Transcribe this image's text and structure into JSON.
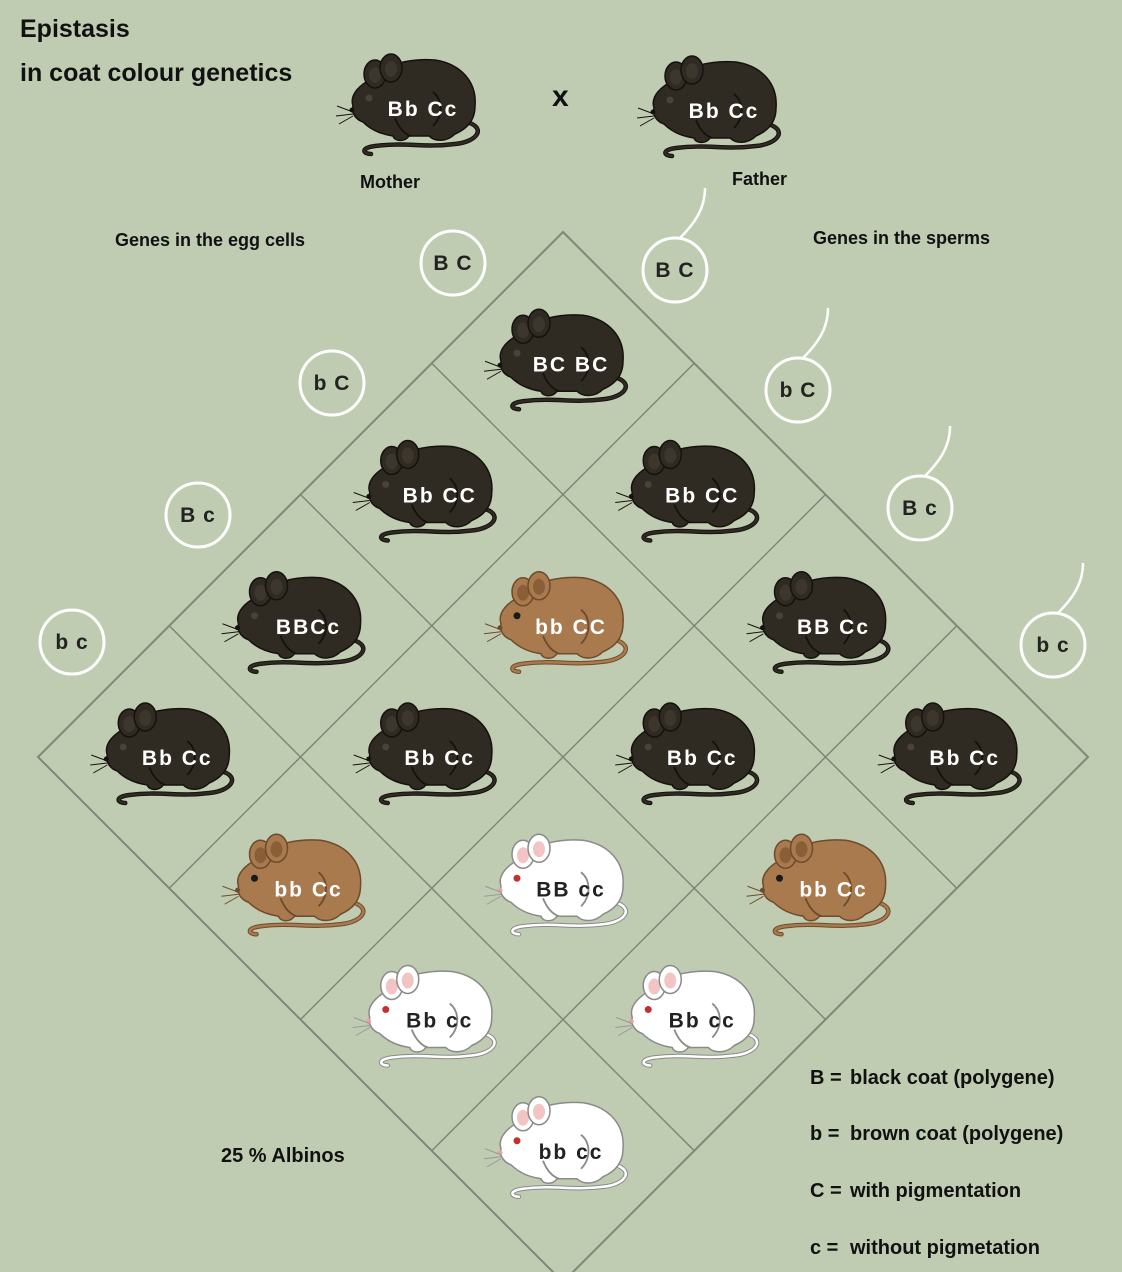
{
  "title": {
    "line1": "Epistasis",
    "line2": "in coat colour genetics"
  },
  "cross": {
    "symbol": "x",
    "mother": {
      "label": "Mother",
      "genotype": "Bb Cc",
      "coat": "black"
    },
    "father": {
      "label": "Father",
      "genotype": "Bb Cc",
      "coat": "black"
    }
  },
  "egg_label": "Genes in the egg cells",
  "sperm_label": "Genes in the sperms",
  "egg_gametes": [
    "B C",
    "b C",
    "B c",
    "b c"
  ],
  "sperm_gametes": [
    "B C",
    "b C",
    "B c",
    "b c"
  ],
  "grid": [
    {
      "row": 0,
      "col": 0,
      "genotype": "BC BC",
      "coat": "black"
    },
    {
      "row": 0,
      "col": 1,
      "genotype": "Bb CC",
      "coat": "black"
    },
    {
      "row": 0,
      "col": 2,
      "genotype": "BB Cc",
      "coat": "black"
    },
    {
      "row": 0,
      "col": 3,
      "genotype": "Bb Cc",
      "coat": "black"
    },
    {
      "row": 1,
      "col": 0,
      "genotype": "Bb CC",
      "coat": "black"
    },
    {
      "row": 1,
      "col": 1,
      "genotype": "bb CC",
      "coat": "brown"
    },
    {
      "row": 1,
      "col": 2,
      "genotype": "Bb Cc",
      "coat": "black"
    },
    {
      "row": 1,
      "col": 3,
      "genotype": "bb Cc",
      "coat": "brown"
    },
    {
      "row": 2,
      "col": 0,
      "genotype": "BBCc",
      "coat": "black"
    },
    {
      "row": 2,
      "col": 1,
      "genotype": "Bb Cc",
      "coat": "black"
    },
    {
      "row": 2,
      "col": 2,
      "genotype": "BB cc",
      "coat": "white"
    },
    {
      "row": 2,
      "col": 3,
      "genotype": "Bb cc",
      "coat": "white"
    },
    {
      "row": 3,
      "col": 0,
      "genotype": "Bb Cc",
      "coat": "black"
    },
    {
      "row": 3,
      "col": 1,
      "genotype": "bb Cc",
      "coat": "brown"
    },
    {
      "row": 3,
      "col": 2,
      "genotype": "Bb cc",
      "coat": "white"
    },
    {
      "row": 3,
      "col": 3,
      "genotype": "bb cc",
      "coat": "white"
    }
  ],
  "albino_note": "25 % Albinos",
  "legend": [
    {
      "symbol": "B =",
      "text": "black coat (polygene)"
    },
    {
      "symbol": "b =",
      "text": "brown coat (polygene)"
    },
    {
      "symbol": "C =",
      "text": "with pigmentation"
    },
    {
      "symbol": "c =",
      "text": "without pigmetation"
    }
  ],
  "colors": {
    "background": "#c0ccb1",
    "grid_line": "#7f8778",
    "black_coat": "#2f2a22",
    "brown_coat": "#a87a4e",
    "white_coat": "#ffffff"
  },
  "icons": {
    "mouse": "mouse-icon",
    "gamete": "gamete-circle-icon",
    "sperm": "sperm-tail-icon"
  }
}
